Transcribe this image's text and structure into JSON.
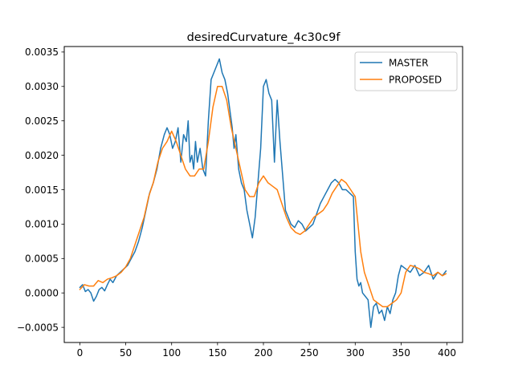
{
  "chart_data": {
    "type": "line",
    "title": "desiredCurvature_4c30c9f",
    "xlabel": "",
    "ylabel": "",
    "xlim": [
      -17,
      417
    ],
    "ylim": [
      -0.00072,
      0.00358
    ],
    "x_ticks": [
      0,
      50,
      100,
      150,
      200,
      250,
      300,
      350,
      400
    ],
    "x_tick_labels": [
      "0",
      "50",
      "100",
      "150",
      "200",
      "250",
      "300",
      "350",
      "400"
    ],
    "y_ticks": [
      -0.0005,
      0.0,
      0.0005,
      0.001,
      0.0015,
      0.002,
      0.0025,
      0.003,
      0.0035
    ],
    "y_tick_labels": [
      "−0.0005",
      "0.0000",
      "0.0005",
      "0.0010",
      "0.0015",
      "0.0020",
      "0.0025",
      "0.0030",
      "0.0035"
    ],
    "grid": false,
    "legend": {
      "placement": "top-right"
    },
    "series": [
      {
        "name": "MASTER",
        "color": "#1f77b4",
        "x": [
          0,
          3,
          6,
          9,
          12,
          15,
          18,
          21,
          24,
          27,
          30,
          33,
          36,
          40,
          44,
          48,
          52,
          56,
          60,
          64,
          68,
          72,
          76,
          80,
          84,
          88,
          92,
          95,
          98,
          101,
          104,
          107,
          110,
          113,
          116,
          118,
          120,
          122,
          124,
          126,
          128,
          131,
          134,
          137,
          140,
          143,
          146,
          149,
          152,
          155,
          158,
          161,
          164,
          166,
          168,
          170,
          173,
          176,
          179,
          182,
          185,
          188,
          191,
          194,
          197,
          200,
          203,
          206,
          209,
          212,
          215,
          218,
          221,
          224,
          227,
          230,
          234,
          238,
          242,
          246,
          250,
          254,
          258,
          262,
          266,
          270,
          274,
          278,
          282,
          286,
          290,
          294,
          298,
          300,
          302,
          304,
          306,
          308,
          311,
          314,
          317,
          320,
          323,
          326,
          329,
          332,
          335,
          338,
          341,
          344,
          347,
          350,
          355,
          360,
          365,
          370,
          375,
          380,
          385,
          390,
          395,
          399
        ],
        "y": [
          8e-05,
          0.00012,
          2e-05,
          5e-05,
          0.0,
          -0.00012,
          -5e-05,
          5e-05,
          8e-05,
          3e-05,
          0.00012,
          0.0002,
          0.00015,
          0.00025,
          0.0003,
          0.00035,
          0.0004,
          0.0005,
          0.0006,
          0.00075,
          0.00095,
          0.0012,
          0.00145,
          0.0016,
          0.0018,
          0.0021,
          0.0023,
          0.0024,
          0.0023,
          0.0021,
          0.0022,
          0.0024,
          0.0019,
          0.0023,
          0.0022,
          0.0025,
          0.0019,
          0.002,
          0.0018,
          0.0022,
          0.0019,
          0.0021,
          0.0018,
          0.0017,
          0.0025,
          0.0031,
          0.0032,
          0.0033,
          0.0034,
          0.0032,
          0.0031,
          0.0029,
          0.0026,
          0.0024,
          0.0021,
          0.0023,
          0.0018,
          0.0016,
          0.0015,
          0.0012,
          0.001,
          0.0008,
          0.0011,
          0.0016,
          0.0021,
          0.003,
          0.0031,
          0.0029,
          0.0028,
          0.0019,
          0.0028,
          0.0022,
          0.0017,
          0.0012,
          0.0011,
          0.001,
          0.00095,
          0.00105,
          0.001,
          0.0009,
          0.00095,
          0.001,
          0.00115,
          0.0013,
          0.0014,
          0.0015,
          0.0016,
          0.00165,
          0.0016,
          0.0015,
          0.0015,
          0.00145,
          0.0014,
          0.0006,
          0.0002,
          0.0001,
          0.00015,
          0.0,
          -5e-05,
          -0.0001,
          -0.0005,
          -0.0002,
          -0.00015,
          -0.0003,
          -0.00025,
          -0.0004,
          -0.0002,
          -0.0003,
          -0.0001,
          0.0,
          0.00025,
          0.0004,
          0.00035,
          0.0003,
          0.0004,
          0.00025,
          0.0003,
          0.0004,
          0.0002,
          0.0003,
          0.00025,
          0.00032
        ]
      },
      {
        "name": "PROPOSED",
        "color": "#ff7f0e",
        "x": [
          0,
          5,
          10,
          15,
          20,
          25,
          30,
          35,
          40,
          45,
          50,
          55,
          60,
          65,
          70,
          75,
          80,
          85,
          90,
          95,
          100,
          105,
          110,
          115,
          120,
          125,
          130,
          135,
          140,
          145,
          150,
          155,
          160,
          165,
          170,
          175,
          180,
          185,
          190,
          195,
          200,
          205,
          210,
          215,
          220,
          225,
          230,
          235,
          240,
          245,
          250,
          255,
          260,
          265,
          270,
          275,
          280,
          285,
          290,
          295,
          300,
          303,
          306,
          310,
          315,
          320,
          325,
          330,
          335,
          340,
          345,
          350,
          355,
          360,
          365,
          370,
          375,
          380,
          385,
          390,
          395,
          399
        ],
        "y": [
          5e-05,
          0.00012,
          0.0001,
          0.0001,
          0.00018,
          0.00015,
          0.0002,
          0.00022,
          0.00025,
          0.0003,
          0.00038,
          0.0005,
          0.0007,
          0.0009,
          0.0011,
          0.0014,
          0.0016,
          0.0019,
          0.0021,
          0.0022,
          0.00235,
          0.0022,
          0.002,
          0.0018,
          0.0017,
          0.0017,
          0.0018,
          0.0018,
          0.0022,
          0.0027,
          0.003,
          0.003,
          0.0028,
          0.0024,
          0.0021,
          0.0018,
          0.0015,
          0.0014,
          0.0014,
          0.0016,
          0.0017,
          0.0016,
          0.00155,
          0.0015,
          0.0013,
          0.0011,
          0.00095,
          0.00088,
          0.00085,
          0.0009,
          0.001,
          0.0011,
          0.00115,
          0.0012,
          0.0013,
          0.00145,
          0.00155,
          0.00165,
          0.0016,
          0.0015,
          0.0014,
          0.001,
          0.0006,
          0.0003,
          0.0001,
          -0.0001,
          -0.00015,
          -0.0002,
          -0.0002,
          -0.00015,
          -0.0001,
          0.0,
          0.0003,
          0.0004,
          0.00038,
          0.00035,
          0.0003,
          0.00028,
          0.00025,
          0.0003,
          0.00025,
          0.00028
        ]
      }
    ]
  }
}
